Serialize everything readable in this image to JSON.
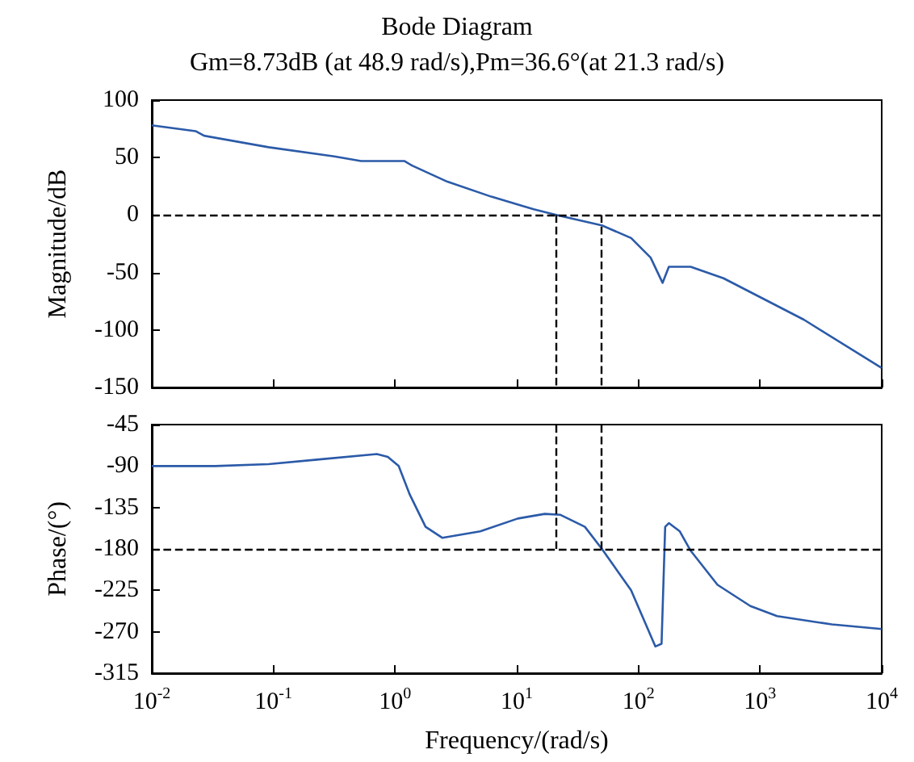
{
  "chart_data": [
    {
      "type": "line",
      "title": "Bode Diagram",
      "subtitle": "Gm=8.73dB (at 48.9 rad/s),Pm=36.6°(at 21.3 rad/s)",
      "ylabel": "Magnitude/dB",
      "log": "x",
      "series": [
        {
          "color": "#2b5aa8",
          "x": [
            0.01,
            0.0229,
            0.0269,
            0.0912,
            0.316,
            0.525,
            1.19,
            1.38,
            2.69,
            6.17,
            13.8,
            21.4,
            50.1,
            87.1,
            126,
            158,
            178,
            269,
            501,
            2290,
            10000
          ],
          "values": [
            78,
            73,
            69,
            59,
            51,
            47,
            47,
            43,
            29,
            16,
            5,
            0,
            -9,
            -20,
            -37,
            -59,
            -45,
            -45,
            -55,
            -91,
            -133
          ]
        }
      ],
      "xlim": [
        0.01,
        10000
      ],
      "xticks": [
        {
          "value": 0.01,
          "label": null
        },
        {
          "value": 0.1,
          "label": null
        },
        {
          "value": 1,
          "label": null
        },
        {
          "value": 10,
          "label": null
        },
        {
          "value": 100,
          "label": null
        },
        {
          "value": 1000,
          "label": null
        },
        {
          "value": 10000,
          "label": null
        }
      ],
      "ylim": [
        -150,
        100
      ],
      "yticks": [
        -150,
        -100,
        -50,
        0,
        50,
        100
      ],
      "tick_labels": "y",
      "grid": false,
      "line_style": "solid",
      "marker": "none",
      "ref_lines": [
        {
          "axis": "y",
          "value": 0
        },
        {
          "axis": "x",
          "value": 21.3
        },
        {
          "axis": "x",
          "value": 48.9
        }
      ]
    },
    {
      "type": "line",
      "xlabel": "Frequency/(rad/s)",
      "ylabel": "Phase/(°)",
      "log": "x",
      "series": [
        {
          "color": "#2b5aa8",
          "x": [
            0.01,
            0.0331,
            0.0912,
            0.229,
            0.708,
            0.871,
            1.07,
            1.32,
            1.78,
            2.45,
            5.01,
            10.2,
            17,
            22.9,
            36.3,
            50.1,
            87.1,
            138,
            155,
            166,
            178,
            219,
            269,
            447,
            832,
            1380,
            3890,
            10000
          ],
          "values": [
            -90,
            -90,
            -88,
            -83,
            -77,
            -80,
            -90,
            -121,
            -156,
            -168,
            -161,
            -147,
            -142,
            -143,
            -156,
            -180,
            -225,
            -286,
            -283,
            -156,
            -152,
            -161,
            -182,
            -219,
            -242,
            -253,
            -262,
            -267
          ]
        }
      ],
      "xlim": [
        0.01,
        10000
      ],
      "xticks": [
        {
          "value": 0.01,
          "label": "10$^{-2}$"
        },
        {
          "value": 0.1,
          "label": "10$^{-1}$"
        },
        {
          "value": 1,
          "label": "10$^{0}$"
        },
        {
          "value": 10,
          "label": "10$^{1}$"
        },
        {
          "value": 100,
          "label": "10$^{2}$"
        },
        {
          "value": 1000,
          "label": "10$^{3}$"
        },
        {
          "value": 10000,
          "label": "10$^{4}$"
        }
      ],
      "ylim": [
        -315,
        -45
      ],
      "yticks": [
        -315,
        -270,
        -225,
        -180,
        -135,
        -90,
        -45
      ],
      "grid": false,
      "line_style": "solid",
      "marker": "none",
      "ref_lines": [
        {
          "axis": "y",
          "value": -180
        },
        {
          "axis": "x",
          "value": 21.3
        },
        {
          "axis": "x",
          "value": 48.9
        }
      ]
    }
  ]
}
